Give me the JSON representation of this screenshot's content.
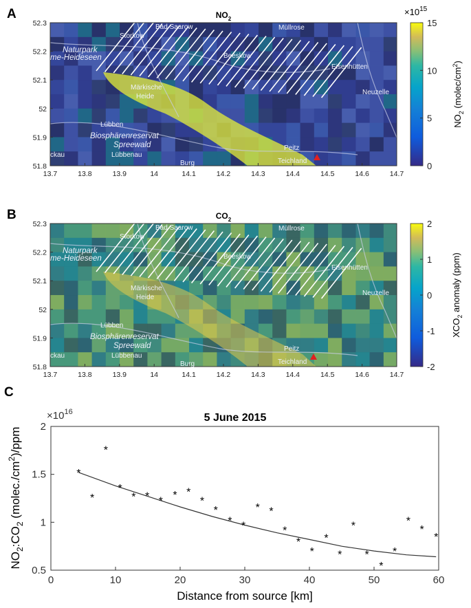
{
  "panels": [
    {
      "letter": "A",
      "title_main": "NO",
      "title_sub": "2",
      "x_ticks": [
        "13.7",
        "13.8",
        "13.9",
        "14",
        "14.1",
        "14.2",
        "14.3",
        "14.4",
        "14.5",
        "14.6",
        "14.7"
      ],
      "y_ticks": [
        "52.3",
        "52.2",
        "52.1",
        "52",
        "51.9",
        "51.8"
      ],
      "colorbar": {
        "exponent_base": "×10",
        "exponent_power": "15",
        "ticks": [
          "15",
          "10",
          "5",
          "0"
        ],
        "label_main": "NO",
        "label_sub": "2",
        "label_rest": " (molec/cm",
        "label_sup": "2",
        "label_end": ")"
      },
      "places": [
        {
          "name": "Bad Saarow"
        },
        {
          "name": "Storkow"
        },
        {
          "name": "Müllrose"
        },
        {
          "name": "Naturpark"
        },
        {
          "name": "me-Heideseen"
        },
        {
          "name": "Beeskow"
        },
        {
          "name": "Eisenhütten"
        },
        {
          "name": "Neuzelle"
        },
        {
          "name": "Märkische"
        },
        {
          "name": "Heide"
        },
        {
          "name": "Lübben"
        },
        {
          "name": "Biosphärenreservat"
        },
        {
          "name": "Spreewald"
        },
        {
          "name": "Lübbenau"
        },
        {
          "name": "ckau"
        },
        {
          "name": "Burg"
        },
        {
          "name": "Peitz"
        },
        {
          "name": "Teichland"
        }
      ]
    },
    {
      "letter": "B",
      "title_main": "CO",
      "title_sub": "2",
      "x_ticks": [
        "13.7",
        "13.8",
        "13.9",
        "14",
        "14.1",
        "14.2",
        "14.3",
        "14.4",
        "14.5",
        "14.6",
        "14.7"
      ],
      "y_ticks": [
        "52.3",
        "52.2",
        "52.1",
        "52",
        "51.9",
        "51.8"
      ],
      "colorbar": {
        "exponent_base": "",
        "exponent_power": "",
        "ticks": [
          "2",
          "1",
          "0",
          "-1",
          "-2"
        ],
        "label_main": "XCO",
        "label_sub": "2",
        "label_rest": " anomaly (ppm)",
        "label_sup": "",
        "label_end": ""
      },
      "places": [
        {
          "name": "Bad Saarow"
        },
        {
          "name": "Storkow"
        },
        {
          "name": "Müllrose"
        },
        {
          "name": "Naturpark"
        },
        {
          "name": "me-Heideseen"
        },
        {
          "name": "Beeskow"
        },
        {
          "name": "Eisenhütten"
        },
        {
          "name": "Neuzelle"
        },
        {
          "name": "Märkische"
        },
        {
          "name": "Heide"
        },
        {
          "name": "Lübben"
        },
        {
          "name": "Biosphärenreservat"
        },
        {
          "name": "Spreewald"
        },
        {
          "name": "Lübbenau"
        },
        {
          "name": "ckau"
        },
        {
          "name": "Burg"
        },
        {
          "name": "Peitz"
        },
        {
          "name": "Teichland"
        }
      ]
    }
  ],
  "chart_data": {
    "type": "scatter",
    "panel_letter": "C",
    "title": "5 June 2015",
    "xlabel": "Distance from source [km]",
    "ylabel_parts": [
      "NO",
      "2",
      ":CO",
      "2",
      " (molec./cm",
      "2",
      ")/ppm"
    ],
    "y_multiplier_base": "×10",
    "y_multiplier_power": "16",
    "xlim": [
      0,
      60
    ],
    "ylim": [
      0.5,
      2
    ],
    "x_ticks": [
      0,
      10,
      20,
      30,
      40,
      50,
      60
    ],
    "y_ticks": [
      0.5,
      1,
      1.5,
      2
    ],
    "y_tick_labels": [
      "0.5",
      "1",
      "1.5",
      "2"
    ],
    "marker": "*",
    "points": [
      {
        "x": 4.3,
        "y": 1.52
      },
      {
        "x": 6.4,
        "y": 1.26
      },
      {
        "x": 8.5,
        "y": 1.76
      },
      {
        "x": 10.7,
        "y": 1.36
      },
      {
        "x": 12.8,
        "y": 1.27
      },
      {
        "x": 14.9,
        "y": 1.28
      },
      {
        "x": 17.0,
        "y": 1.23
      },
      {
        "x": 19.2,
        "y": 1.29
      },
      {
        "x": 21.3,
        "y": 1.32
      },
      {
        "x": 23.4,
        "y": 1.23
      },
      {
        "x": 25.5,
        "y": 1.13
      },
      {
        "x": 27.7,
        "y": 1.02
      },
      {
        "x": 29.8,
        "y": 0.97
      },
      {
        "x": 32.0,
        "y": 1.16
      },
      {
        "x": 34.1,
        "y": 1.12
      },
      {
        "x": 36.2,
        "y": 0.92
      },
      {
        "x": 38.3,
        "y": 0.8
      },
      {
        "x": 40.4,
        "y": 0.7
      },
      {
        "x": 42.6,
        "y": 0.84
      },
      {
        "x": 44.7,
        "y": 0.67
      },
      {
        "x": 46.8,
        "y": 0.97
      },
      {
        "x": 48.9,
        "y": 0.67
      },
      {
        "x": 51.1,
        "y": 0.55
      },
      {
        "x": 53.2,
        "y": 0.7
      },
      {
        "x": 55.3,
        "y": 1.02
      },
      {
        "x": 57.4,
        "y": 0.93
      },
      {
        "x": 59.6,
        "y": 0.85
      }
    ],
    "fit_curve": [
      {
        "x": 4.3,
        "y": 1.52
      },
      {
        "x": 10,
        "y": 1.38
      },
      {
        "x": 15,
        "y": 1.27
      },
      {
        "x": 20,
        "y": 1.16
      },
      {
        "x": 25,
        "y": 1.06
      },
      {
        "x": 30,
        "y": 0.97
      },
      {
        "x": 35,
        "y": 0.89
      },
      {
        "x": 40,
        "y": 0.82
      },
      {
        "x": 45,
        "y": 0.75
      },
      {
        "x": 50,
        "y": 0.7
      },
      {
        "x": 55,
        "y": 0.66
      },
      {
        "x": 59.6,
        "y": 0.64
      }
    ],
    "colors": {
      "marker": "#000000",
      "curve": "#333333"
    }
  }
}
